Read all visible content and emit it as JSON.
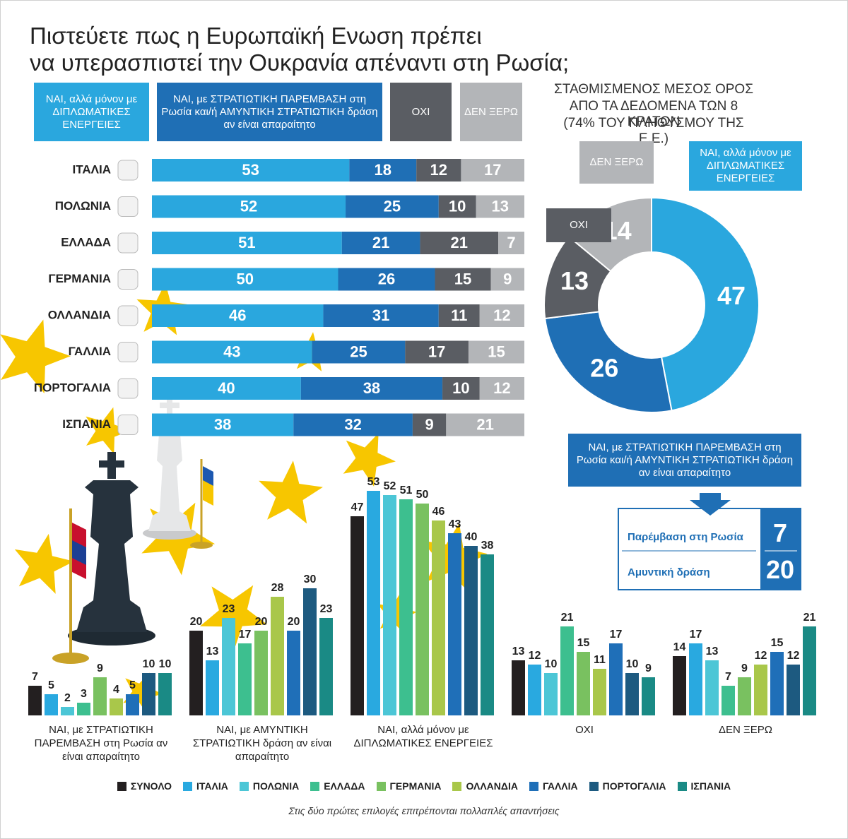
{
  "title": [
    "Πιστεύετε πως η Ευρωπαϊκή Ενωση πρέπει",
    "να υπερασπιστεί την Ουκρανία απέναντι στη Ρωσία;"
  ],
  "chart_data": [
    {
      "type": "bar",
      "stacked": true,
      "orientation": "horizontal",
      "categories": [
        "ΙΤΑΛΙΑ",
        "ΠΟΛΩΝΙΑ",
        "ΕΛΛΑΔΑ",
        "ΓΕΡΜΑΝΙΑ",
        "ΟΛΛΑΝΔΙΑ",
        "ΓΑΛΛΙΑ",
        "ΠΟΡΤΟΓΑΛΙΑ",
        "ΙΣΠΑΝΙΑ"
      ],
      "series": [
        {
          "name": "ΝΑΙ, αλλά  μόνον με ΔΙΠΛΩΜΑΤΙΚΕΣ ΕΝΕΡΓΕΙΕΣ",
          "color": "#2aa7de",
          "values": [
            53,
            52,
            51,
            50,
            46,
            43,
            40,
            38
          ]
        },
        {
          "name": "ΝΑΙ, με ΣΤΡΑΤΙΩΤΙΚΗ ΠΑΡΕΜΒΑΣΗ στη Ρωσία και/ή ΑΜΥΝΤΙΚΗ ΣΤΡΑΤΙΩΤΙΚΗ δράση αν είναι απαραίτητο",
          "color": "#1f6fb5",
          "values": [
            18,
            25,
            21,
            26,
            31,
            25,
            38,
            32
          ]
        },
        {
          "name": "ΟΧΙ",
          "color": "#5a5d63",
          "values": [
            12,
            10,
            21,
            15,
            11,
            17,
            10,
            9
          ]
        },
        {
          "name": "ΔΕΝ ΞΕΡΩ",
          "color": "#b3b5b8",
          "values": [
            17,
            13,
            7,
            9,
            12,
            15,
            12,
            21
          ]
        }
      ],
      "xlim": [
        0,
        100
      ]
    },
    {
      "type": "pie",
      "donut": true,
      "title": [
        "ΣΤΑΘΜΙΣΜΕΝΟΣ ΜΕΣΟΣ ΟΡΟΣ",
        "ΑΠΟ ΤΑ ΔΕΔΟΜΕΝΑ ΤΩΝ 8 ΚΡΑΤΩΝ",
        "(74% ΤΟΥ ΠΛΗΘΥΣΜΟΥ ΤΗΣ Ε.Ε.)"
      ],
      "categories": [
        "ΝΑΙ, αλλά μόνον με ΔΙΠΛΩΜΑΤΙΚΕΣ ΕΝΕΡΓΕΙΕΣ",
        "ΝΑΙ, με ΣΤΡΑΤΙΩΤΙΚΗ ΠΑΡΕΜΒΑΣΗ στη Ρωσία και/ή ΑΜΥΝΤΙΚΗ ΣΤΡΑΤΙΩΤΙΚΗ δράση αν είναι απαραίτητο",
        "ΟΧΙ",
        "ΔΕΝ ΞΕΡΩ"
      ],
      "values": [
        47,
        26,
        13,
        14
      ],
      "colors": [
        "#2aa7de",
        "#1f6fb5",
        "#5a5d63",
        "#b3b5b8"
      ]
    },
    {
      "type": "bar",
      "grouped": true,
      "categories": [
        "ΝΑΙ, με ΣΤΡΑΤΙΩΤΙΚΗ ΠΑΡΕΜΒΑΣΗ στη Ρωσία αν είναι απαραίτητο",
        "ΝΑΙ, με ΑΜΥΝΤΙΚΗ ΣΤΡΑΤΙΩΤΙΚΗ δράση αν είναι απαραίτητο",
        "ΝΑΙ, αλλά μόνον με ΔΙΠΛΩΜΑΤΙΚΕΣ ΕΝΕΡΓΕΙΕΣ",
        "ΟΧΙ",
        "ΔΕΝ ΞΕΡΩ"
      ],
      "series": [
        {
          "name": "ΣΥΝΟΛΟ",
          "color": "#231f20",
          "values": [
            7,
            20,
            47,
            13,
            14
          ]
        },
        {
          "name": "ΙΤΑΛΙΑ",
          "color": "#29a9e0",
          "values": [
            5,
            13,
            53,
            12,
            17
          ]
        },
        {
          "name": "ΠΟΛΩΝΙΑ",
          "color": "#4cc6d6",
          "values": [
            2,
            23,
            52,
            10,
            13
          ]
        },
        {
          "name": "ΕΛΛΑΔΑ",
          "color": "#3dbf8f",
          "values": [
            3,
            17,
            51,
            21,
            7
          ]
        },
        {
          "name": "ΓΕΡΜΑΝΙΑ",
          "color": "#79c160",
          "values": [
            9,
            20,
            50,
            15,
            9
          ]
        },
        {
          "name": "ΟΛΛΑΝΔΙΑ",
          "color": "#a9c74a",
          "values": [
            4,
            28,
            46,
            11,
            12
          ]
        },
        {
          "name": "ΓΑΛΛΙΑ",
          "color": "#1f6fb8",
          "values": [
            5,
            20,
            43,
            17,
            15
          ]
        },
        {
          "name": "ΠΟΡΤΟΓΑΛΙΑ",
          "color": "#1d5a80",
          "values": [
            10,
            30,
            40,
            10,
            12
          ]
        },
        {
          "name": "ΙΣΠΑΝΙΑ",
          "color": "#1a8a85",
          "values": [
            10,
            23,
            38,
            9,
            21
          ]
        }
      ],
      "ylim": [
        0,
        55
      ],
      "legend": "bottom"
    }
  ],
  "breakdown": {
    "items": [
      {
        "label": "Παρέμβαση στη Ρωσία",
        "value": 7
      },
      {
        "label": "Αμυντική δράση",
        "value": 20
      }
    ]
  },
  "footnote": "Στις δύο πρώτες επιλογές επιτρέπονται πολλαπλές απαντήσεις"
}
